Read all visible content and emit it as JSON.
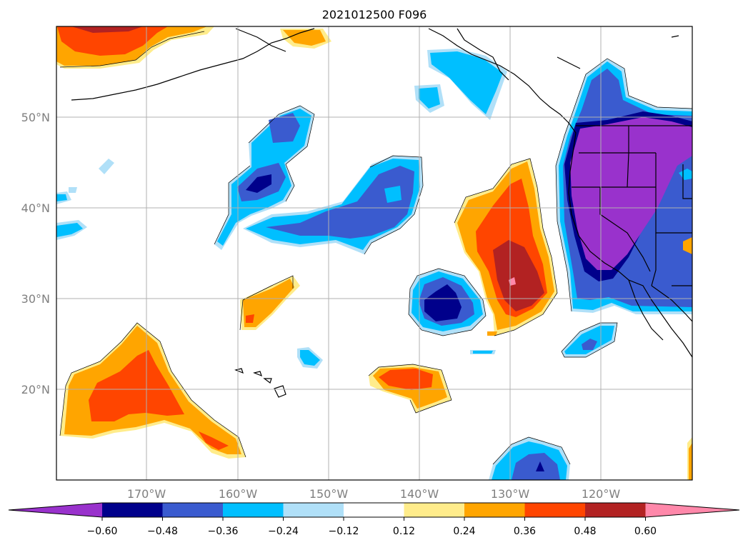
{
  "title": "2021012500 F096",
  "map": {
    "lat_labels": [
      "50°N",
      "40°N",
      "30°N",
      "20°N"
    ],
    "lon_labels": [
      "170°W",
      "160°W",
      "150°W",
      "140°W",
      "130°W",
      "120°W"
    ]
  },
  "colorbar": {
    "tick_labels": [
      "−0.60",
      "−0.48",
      "−0.36",
      "−0.24",
      "−0.12",
      "0.12",
      "0.24",
      "0.36",
      "0.48",
      "0.60"
    ],
    "colors": [
      "#9932cc",
      "#00008b",
      "#3a5bcf",
      "#00bfff",
      "#b0e0f8",
      "#ffffff",
      "#ffec8b",
      "#ffa500",
      "#ff4500",
      "#b22222",
      "#ff88aa"
    ]
  },
  "colors": {
    "purple": "#9932cc",
    "navy": "#00008b",
    "blue": "#3a5bcf",
    "cyan": "#00bfff",
    "lightblue": "#b0e0f8",
    "yellow": "#ffec8b",
    "orange": "#ffa500",
    "redorange": "#ff4500",
    "firebrick": "#b22222",
    "pink": "#ff88aa"
  }
}
